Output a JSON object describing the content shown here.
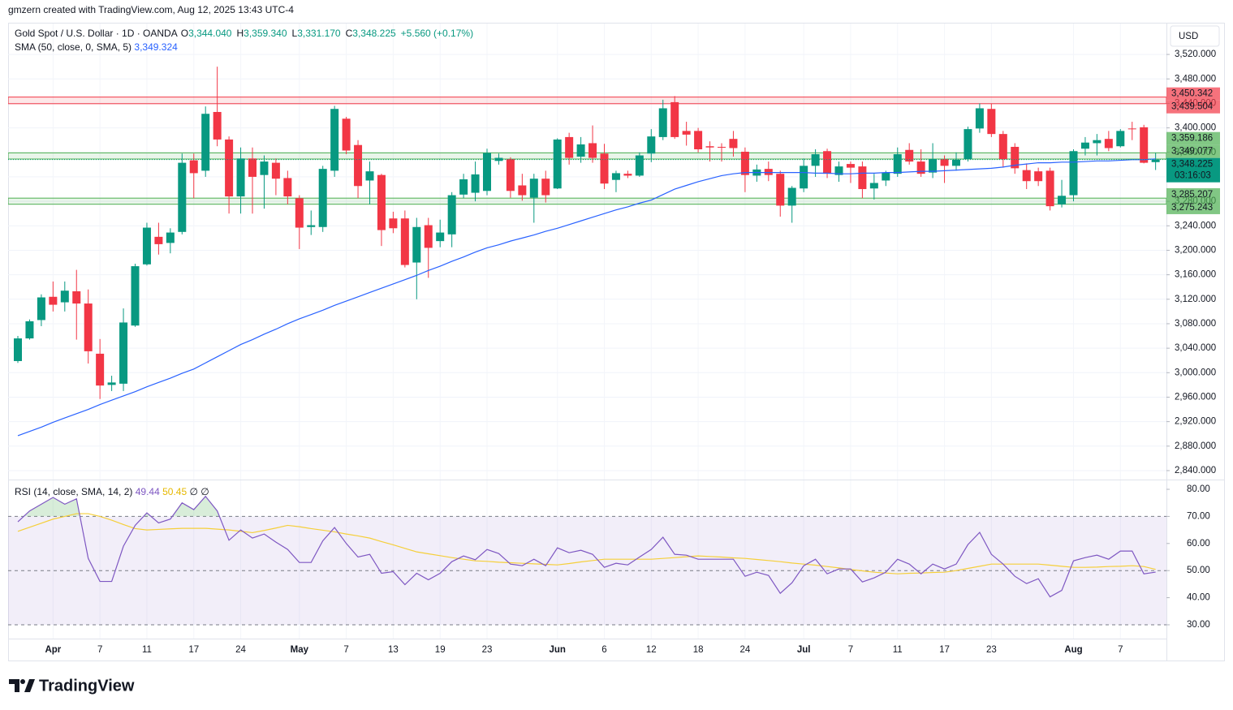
{
  "attribution": "gmzern created with TradingView.com, Aug 12, 2025 13:43 UTC-4",
  "brand": "TradingView",
  "chart_data": {
    "type": "candlestick",
    "title": "Gold Spot / U.S. Dollar · 1D · OANDA",
    "ohlc_labels": [
      {
        "key": "O",
        "label": "3,344.040"
      },
      {
        "key": "H",
        "label": "3,359.340"
      },
      {
        "key": "L",
        "label": "3,331.170"
      },
      {
        "key": "C",
        "label": "3,348.225"
      }
    ],
    "change": "+5.560 (+0.17%)",
    "currency": "USD",
    "up_color": "#089981",
    "down_color": "#f23645",
    "grid": true,
    "categories": [
      null,
      null,
      null,
      "Apr",
      null,
      null,
      null,
      "7",
      null,
      null,
      null,
      "11",
      null,
      null,
      null,
      "17",
      null,
      null,
      null,
      "24",
      null,
      null,
      null,
      null,
      "May",
      null,
      null,
      null,
      "7",
      null,
      null,
      null,
      "13",
      null,
      null,
      null,
      "19",
      null,
      null,
      null,
      "23",
      null,
      null,
      null,
      null,
      null,
      "Jun",
      null,
      null,
      null,
      "6",
      null,
      null,
      null,
      "12",
      null,
      null,
      null,
      "18",
      null,
      null,
      null,
      "24",
      null,
      null,
      null,
      null,
      "Jul",
      null,
      null,
      null,
      "7",
      null,
      null,
      null,
      "11",
      null,
      null,
      null,
      "17",
      null,
      null,
      null,
      "23",
      null,
      null,
      null,
      null,
      null,
      null,
      "Aug",
      null,
      null,
      null,
      "7",
      null,
      null,
      null
    ],
    "open": [
      3019,
      3056,
      3086,
      3124,
      3115,
      3133,
      3113,
      3031,
      2980,
      2982,
      3077,
      3177,
      3222,
      3212,
      3230,
      3347,
      3330,
      3426,
      3381,
      3288,
      3350,
      3323,
      3343,
      3318,
      3285,
      3238,
      3238,
      3330,
      3415,
      3372,
      3314,
      3323,
      3252,
      3252,
      3180,
      3241,
      3215,
      3226,
      3291,
      3294,
      3297,
      3346,
      3349,
      3306,
      3286,
      3317,
      3301,
      3385,
      3353,
      3375,
      3358,
      3315,
      3325,
      3322,
      3358,
      3385,
      3442,
      3395,
      3395,
      3370,
      3369,
      3382,
      3361,
      3322,
      3333,
      3325,
      3273,
      3301,
      3338,
      3362,
      3323,
      3341,
      3337,
      3301,
      3314,
      3325,
      3364,
      3345,
      3327,
      3349,
      3338,
      3349,
      3399,
      3431,
      3390,
      3369,
      3331,
      3329,
      3330,
      3275,
      3290,
      3366,
      3375,
      3382,
      3370,
      3399,
      3401,
      3344.04
    ],
    "high": [
      3060,
      3087,
      3128,
      3149,
      3149,
      3168,
      3136,
      3055,
      2995,
      3105,
      3178,
      3245,
      3245,
      3236,
      3358,
      3358,
      3435,
      3500,
      3386,
      3368,
      3368,
      3355,
      3350,
      3330,
      3290,
      3265,
      3338,
      3436,
      3418,
      3380,
      3345,
      3325,
      3263,
      3265,
      3253,
      3253,
      3250,
      3295,
      3325,
      3345,
      3366,
      3358,
      3352,
      3325,
      3325,
      3330,
      3383,
      3392,
      3385,
      3404,
      3374,
      3330,
      3330,
      3360,
      3398,
      3446,
      3452,
      3410,
      3400,
      3378,
      3375,
      3395,
      3368,
      3340,
      3345,
      3330,
      3305,
      3350,
      3365,
      3366,
      3345,
      3345,
      3345,
      3325,
      3330,
      3368,
      3375,
      3365,
      3375,
      3355,
      3360,
      3402,
      3440,
      3440,
      3395,
      3375,
      3342,
      3335,
      3335,
      3315,
      3365,
      3385,
      3390,
      3395,
      3398,
      3410,
      3405,
      3359.34
    ],
    "low": [
      3016,
      3054,
      3076,
      3100,
      3100,
      3054,
      3015,
      2957,
      2970,
      2970,
      3075,
      3175,
      3193,
      3195,
      3226,
      3285,
      3320,
      3370,
      3260,
      3260,
      3260,
      3268,
      3290,
      3275,
      3202,
      3225,
      3230,
      3320,
      3357,
      3285,
      3275,
      3207,
      3228,
      3172,
      3120,
      3155,
      3205,
      3205,
      3285,
      3280,
      3290,
      3340,
      3286,
      3281,
      3245,
      3278,
      3300,
      3340,
      3343,
      3343,
      3300,
      3295,
      3318,
      3320,
      3344,
      3380,
      3382,
      3371,
      3360,
      3345,
      3345,
      3353,
      3295,
      3312,
      3313,
      3255,
      3245,
      3295,
      3320,
      3318,
      3312,
      3310,
      3285,
      3283,
      3305,
      3320,
      3340,
      3320,
      3318,
      3310,
      3330,
      3345,
      3392,
      3385,
      3335,
      3325,
      3300,
      3305,
      3265,
      3270,
      3280,
      3355,
      3355,
      3362,
      3368,
      3380,
      3342,
      3331.17
    ],
    "close": [
      3056,
      3084,
      3123,
      3111,
      3134,
      3113,
      3035,
      2979,
      2984,
      3082,
      3174,
      3237,
      3210,
      3229,
      3343,
      3326,
      3423,
      3381,
      3288,
      3350,
      3320,
      3345,
      3317,
      3288,
      3237,
      3241,
      3333,
      3431,
      3363,
      3305,
      3329,
      3233,
      3236,
      3176,
      3238,
      3204,
      3229,
      3290,
      3316,
      3324,
      3359,
      3351,
      3297,
      3290,
      3317,
      3290,
      3381,
      3351,
      3373,
      3351,
      3309,
      3326,
      3322,
      3355,
      3386,
      3432,
      3385,
      3389,
      3365,
      3368,
      3368,
      3367,
      3323,
      3332,
      3323,
      3273,
      3302,
      3338,
      3357,
      3325,
      3337,
      3335,
      3300,
      3310,
      3327,
      3357,
      3345,
      3325,
      3349,
      3338,
      3348,
      3398,
      3432,
      3390,
      3349,
      3334,
      3313,
      3313,
      3272,
      3289,
      3362,
      3376,
      3380,
      3367,
      3395,
      3398,
      3343,
      3348.225
    ],
    "ylim": [
      2826.7,
      3570.5
    ],
    "yticks": [
      {
        "value": 2840,
        "label": "2,840.000"
      },
      {
        "value": 2880,
        "label": "2,880.000"
      },
      {
        "value": 2920,
        "label": "2,920.000"
      },
      {
        "value": 2960,
        "label": "2,960.000"
      },
      {
        "value": 3000,
        "label": "3,000.000"
      },
      {
        "value": 3040,
        "label": "3,040.000"
      },
      {
        "value": 3080,
        "label": "3,080.000"
      },
      {
        "value": 3120,
        "label": "3,120.000"
      },
      {
        "value": 3160,
        "label": "3,160.000"
      },
      {
        "value": 3200,
        "label": "3,200.000"
      },
      {
        "value": 3240,
        "label": "3,240.000"
      },
      {
        "value": 3280,
        "label": "3,280.000"
      },
      {
        "value": 3320,
        "label": "3,320.000"
      },
      {
        "value": 3360,
        "label": "3,360.000"
      },
      {
        "value": 3400,
        "label": "3,400.000"
      },
      {
        "value": 3440,
        "label": "3,440.000"
      },
      {
        "value": 3480,
        "label": "3,480.000"
      },
      {
        "value": 3520,
        "label": "3,520.000"
      }
    ],
    "sma": {
      "name": "SMA (50, close, 0, SMA, 5)",
      "value_label": "3,349.324",
      "color": "#2962ff",
      "values": [
        2897,
        2904,
        2911,
        2919,
        2926,
        2933,
        2940,
        2948,
        2955,
        2962,
        2969,
        2977,
        2984,
        2991,
        2999,
        3006,
        3016,
        3026,
        3036,
        3046,
        3054,
        3063,
        3071,
        3080,
        3088,
        3095,
        3102,
        3110,
        3117,
        3124,
        3131,
        3138,
        3145,
        3152,
        3159,
        3167,
        3174,
        3182,
        3189,
        3197,
        3204,
        3209,
        3215,
        3220,
        3225,
        3231,
        3236,
        3242,
        3248,
        3254,
        3260,
        3266,
        3271,
        3277,
        3282,
        3291,
        3300,
        3306,
        3312,
        3317,
        3322,
        3325,
        3327,
        3327,
        3327,
        3327,
        3327,
        3327,
        3326,
        3326,
        3325,
        3325,
        3326,
        3326,
        3327,
        3327,
        3328,
        3329,
        3329,
        3330,
        3331,
        3332,
        3333,
        3334,
        3336,
        3339,
        3341,
        3343,
        3343,
        3344,
        3344,
        3345,
        3346,
        3346,
        3347,
        3348,
        3348,
        3349.324
      ]
    },
    "zones": [
      {
        "low": 3439.504,
        "high": 3450.342,
        "low_label": "3,439.504",
        "high_label": "3,450.342",
        "color": "#f23645",
        "label_text_color": "#ffffff"
      },
      {
        "low": 3349.077,
        "high": 3359.186,
        "low_label": "3,349.077",
        "high_label": "3,359.186",
        "color": "#4caf50",
        "label_text_color": "#131722"
      },
      {
        "low": 3275.243,
        "high": 3285.207,
        "low_label": "3,275.243",
        "high_label": "3,285.207",
        "color": "#4caf50",
        "label_text_color": "#131722"
      }
    ],
    "last_price": {
      "value": 3348.225,
      "label": "3,348.225",
      "countdown": "03:16:03",
      "color": "#089981"
    },
    "rsi": {
      "name": "RSI (14, close, SMA, 14, 2)",
      "value_label": "49.44",
      "color": "#7e57c2",
      "values": [
        68,
        72,
        74.5,
        77,
        74.5,
        76.5,
        54.5,
        46,
        46,
        59,
        66.7,
        71.3,
        67.6,
        69,
        75,
        72.5,
        77.4,
        72,
        61.2,
        65,
        62,
        63.5,
        60.5,
        57.8,
        53,
        53,
        61,
        65.9,
        60,
        55,
        56,
        49,
        49.6,
        44.8,
        49,
        46.6,
        49,
        53.3,
        55.4,
        54,
        57.8,
        56.3,
        52.4,
        51.8,
        54.2,
        51.8,
        58.4,
        56.6,
        57.5,
        56,
        51.2,
        52.7,
        52.1,
        55,
        57.8,
        62.3,
        56,
        55.7,
        54.2,
        54.2,
        54.2,
        54.2,
        47.9,
        49.4,
        48.2,
        41.6,
        45.5,
        51.8,
        54.2,
        48.8,
        50.6,
        50.6,
        45.8,
        47.3,
        49.4,
        54.2,
        52.4,
        48.8,
        52.4,
        50.6,
        52.4,
        59.6,
        64.1,
        56,
        52.4,
        47.9,
        45.2,
        47,
        40.3,
        42.7,
        53.6,
        54.8,
        55.7,
        54.2,
        57.2,
        57.2,
        48.8,
        49.44
      ],
      "sma_label": "50.45",
      "sma_color": "#f5cf3a",
      "sma_values": [
        64.5,
        66,
        67.5,
        69,
        70,
        71,
        71,
        70,
        68.6,
        67,
        65.5,
        65,
        65.2,
        65.4,
        65.6,
        65.6,
        65.6,
        65.3,
        65,
        64.5,
        64,
        64.8,
        65.7,
        66.7,
        66.2,
        65.5,
        64.9,
        64.3,
        63.5,
        62.8,
        62,
        60.7,
        59.5,
        58.2,
        56.9,
        56.2,
        55.5,
        54.8,
        54.2,
        53.6,
        53.4,
        53.1,
        52.9,
        52.7,
        52.5,
        52.3,
        52.1,
        52.6,
        53.2,
        53.7,
        54.2,
        54.2,
        54.2,
        54.2,
        54.2,
        54.5,
        54.8,
        55.1,
        55.4,
        55.2,
        55,
        54.7,
        54.5,
        54.1,
        53.7,
        53.3,
        52.8,
        52.4,
        52,
        51.5,
        51,
        50.4,
        49.9,
        49.4,
        49.1,
        48.8,
        49,
        49.1,
        49.3,
        49.4,
        50,
        50.8,
        51.6,
        52.4,
        52.4,
        52.4,
        52.4,
        52.4,
        52,
        51.6,
        51.2,
        51.2,
        51.3,
        51.5,
        51.6,
        51.8,
        51.5,
        50.45
      ],
      "extras": [
        "∅",
        "∅"
      ],
      "band": [
        30,
        70
      ],
      "midline": 50,
      "ylim": [
        24.9,
        83.3
      ],
      "yticks": [
        {
          "value": 30,
          "label": "30.00"
        },
        {
          "value": 40,
          "label": "40.00"
        },
        {
          "value": 50,
          "label": "50.00"
        },
        {
          "value": 60,
          "label": "60.00"
        },
        {
          "value": 70,
          "label": "70.00"
        },
        {
          "value": 80,
          "label": "80.00"
        }
      ]
    }
  }
}
